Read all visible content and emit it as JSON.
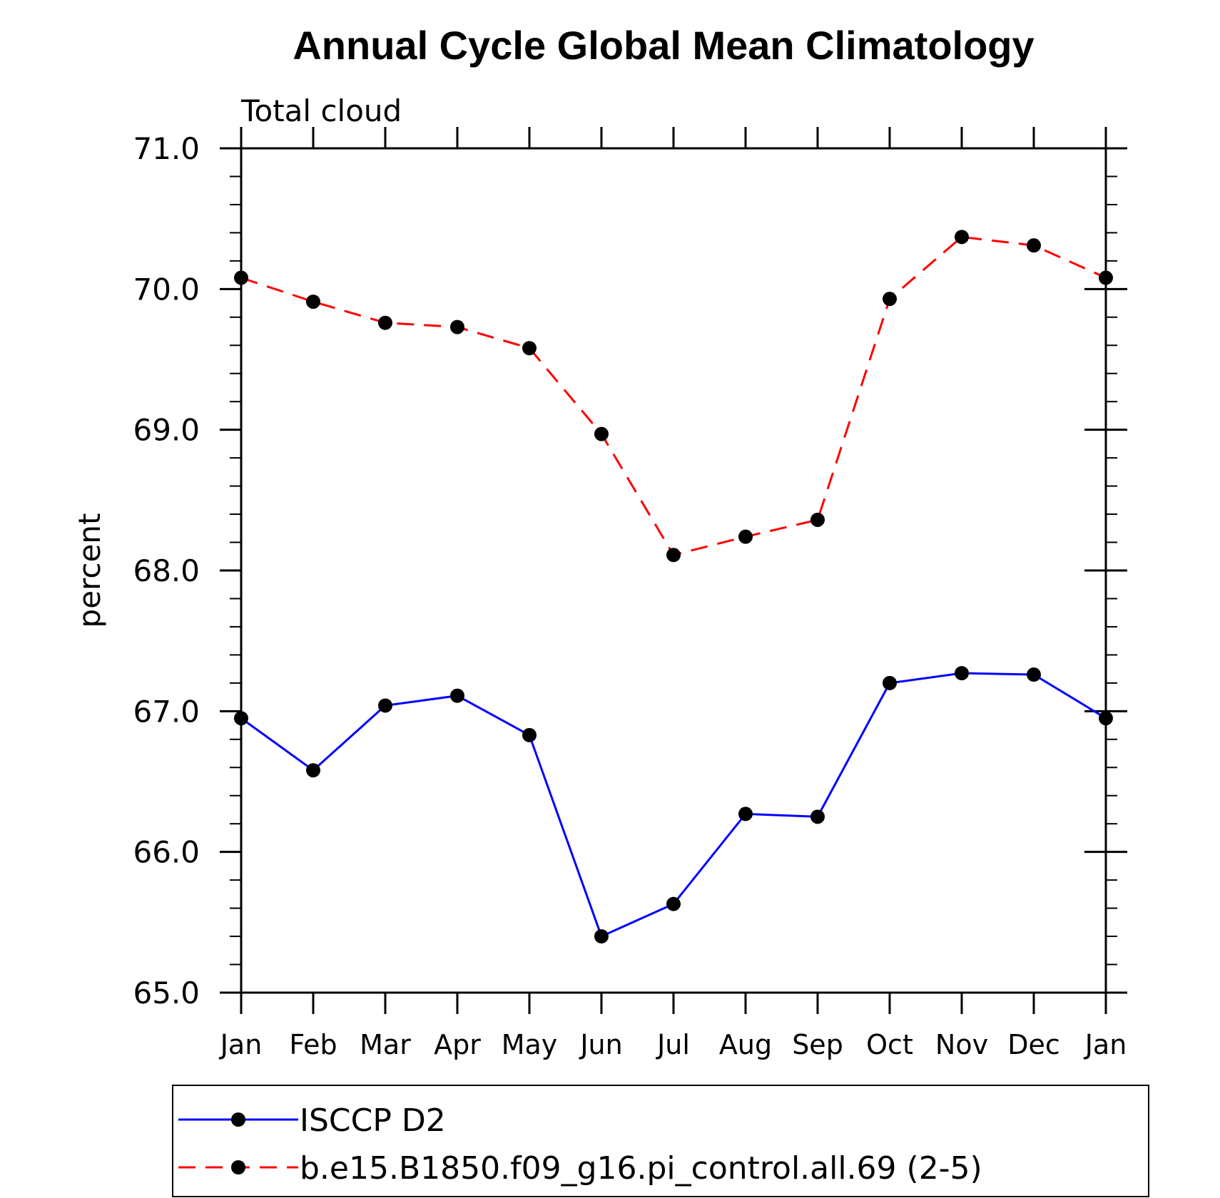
{
  "chart_data": {
    "type": "line",
    "title": "Annual Cycle Global Mean Climatology",
    "subtitle": "Total cloud",
    "xlabel": "",
    "ylabel": "percent",
    "categories": [
      "Jan",
      "Feb",
      "Mar",
      "Apr",
      "May",
      "Jun",
      "Jul",
      "Aug",
      "Sep",
      "Oct",
      "Nov",
      "Dec",
      "Jan"
    ],
    "ylim": [
      65.0,
      71.0
    ],
    "yticks": [
      "65.0",
      "66.0",
      "67.0",
      "68.0",
      "69.0",
      "70.0",
      "71.0"
    ],
    "grid": false,
    "legend_position": "bottom",
    "series": [
      {
        "name": "ISCCP D2",
        "color": "#0000ff",
        "dash": "solid",
        "values": [
          66.95,
          66.58,
          67.04,
          67.11,
          66.83,
          65.4,
          65.63,
          66.27,
          66.25,
          67.2,
          67.27,
          67.26,
          66.95
        ]
      },
      {
        "name": "b.e15.B1850.f09_g16.pi_control.all.69 (2-5)",
        "color": "#ff0000",
        "dash": "dashed",
        "values": [
          70.08,
          69.91,
          69.76,
          69.73,
          69.58,
          68.97,
          68.11,
          68.24,
          68.36,
          69.93,
          70.37,
          70.31,
          70.08
        ]
      }
    ],
    "marker_color": "#000000"
  }
}
